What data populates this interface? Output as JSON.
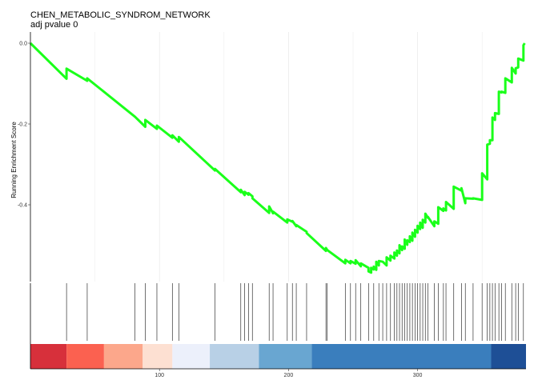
{
  "chart_data": {
    "type": "line",
    "title": "CHEN_METABOLIC_SYNDROM_NETWORK",
    "subtitle": "adj pvalue 0",
    "xlabel": "",
    "ylabel": "Running Enrichment Score",
    "xlim": [
      0,
      384
    ],
    "ylim": [
      -0.57,
      0.0
    ],
    "grid": true,
    "x_ticks": [
      100,
      200,
      300
    ],
    "y_ticks": [
      0.0,
      -0.2,
      -0.4
    ],
    "x_tick_labels": [
      "100",
      "200",
      "300"
    ],
    "y_tick_labels": [
      "0.0",
      "-0.2",
      "-0.4"
    ],
    "line_color": "#1aff1a",
    "series": [
      {
        "x": [
          0,
          28,
          28,
          44,
          44,
          81,
          81,
          89,
          89,
          98,
          98,
          110,
          110,
          115,
          115,
          143,
          143,
          163,
          163,
          166,
          166,
          169,
          169,
          172,
          172,
          185,
          185,
          188,
          188,
          199,
          199,
          203,
          203,
          206,
          206,
          214,
          214,
          229,
          229,
          230,
          230,
          244,
          244,
          248,
          248,
          252,
          252,
          256,
          256,
          262,
          262,
          264,
          264,
          266,
          266,
          268,
          268,
          270,
          270,
          273,
          273,
          276,
          276,
          279,
          279,
          282,
          282,
          284,
          284,
          286,
          286,
          288,
          288,
          290,
          290,
          292,
          292,
          294,
          294,
          296,
          296,
          298,
          298,
          300,
          300,
          302,
          302,
          304,
          304,
          306,
          306,
          308,
          308,
          313,
          313,
          316,
          316,
          320,
          320,
          322,
          322,
          328,
          328,
          334,
          334,
          337,
          337,
          343,
          343,
          350,
          350,
          354,
          354,
          356,
          356,
          358,
          358,
          360,
          360,
          363,
          363,
          365,
          365,
          368,
          368,
          373,
          373,
          376,
          376,
          378,
          378,
          382,
          382,
          383
        ],
        "y": [
          0.0,
          -0.088,
          -0.063,
          -0.093,
          -0.087,
          -0.182,
          -0.182,
          -0.207,
          -0.19,
          -0.212,
          -0.204,
          -0.234,
          -0.228,
          -0.244,
          -0.232,
          -0.315,
          -0.311,
          -0.369,
          -0.363,
          -0.376,
          -0.368,
          -0.375,
          -0.371,
          -0.379,
          -0.384,
          -0.42,
          -0.404,
          -0.421,
          -0.417,
          -0.444,
          -0.436,
          -0.442,
          -0.44,
          -0.453,
          -0.45,
          -0.467,
          -0.47,
          -0.514,
          -0.507,
          -0.512,
          -0.512,
          -0.545,
          -0.536,
          -0.545,
          -0.539,
          -0.546,
          -0.537,
          -0.552,
          -0.545,
          -0.556,
          -0.565,
          -0.568,
          -0.556,
          -0.56,
          -0.553,
          -0.561,
          -0.541,
          -0.55,
          -0.539,
          -0.541,
          -0.541,
          -0.55,
          -0.53,
          -0.538,
          -0.526,
          -0.533,
          -0.518,
          -0.526,
          -0.513,
          -0.52,
          -0.5,
          -0.512,
          -0.503,
          -0.509,
          -0.486,
          -0.499,
          -0.488,
          -0.492,
          -0.478,
          -0.489,
          -0.469,
          -0.479,
          -0.462,
          -0.469,
          -0.452,
          -0.46,
          -0.444,
          -0.457,
          -0.437,
          -0.444,
          -0.422,
          -0.432,
          -0.43,
          -0.453,
          -0.441,
          -0.447,
          -0.406,
          -0.415,
          -0.409,
          -0.414,
          -0.393,
          -0.41,
          -0.355,
          -0.365,
          -0.359,
          -0.396,
          -0.384,
          -0.385,
          -0.384,
          -0.388,
          -0.322,
          -0.337,
          -0.251,
          -0.249,
          -0.24,
          -0.24,
          -0.184,
          -0.19,
          -0.173,
          -0.175,
          -0.12,
          -0.122,
          -0.12,
          -0.123,
          -0.087,
          -0.097,
          -0.061,
          -0.075,
          -0.062,
          -0.06,
          -0.038,
          -0.043,
          -0.005,
          0.0
        ]
      }
    ],
    "hits": [
      28,
      44,
      81,
      89,
      98,
      110,
      115,
      143,
      163,
      166,
      169,
      172,
      185,
      188,
      199,
      203,
      206,
      214,
      229,
      230,
      244,
      248,
      252,
      256,
      262,
      266,
      270,
      273,
      276,
      279,
      282,
      284,
      286,
      288,
      290,
      292,
      294,
      296,
      298,
      300,
      302,
      304,
      306,
      308,
      313,
      316,
      320,
      322,
      328,
      334,
      337,
      343,
      350,
      354,
      356,
      358,
      360,
      363,
      365,
      368,
      373,
      376,
      378,
      382
    ],
    "color_bands": [
      {
        "x0": 0,
        "x1": 28,
        "color": "#d7303b"
      },
      {
        "x0": 28,
        "x1": 57,
        "color": "#fb6150"
      },
      {
        "x0": 57,
        "x1": 87,
        "color": "#fca78b"
      },
      {
        "x0": 87,
        "x1": 110,
        "color": "#fde0d2"
      },
      {
        "x0": 110,
        "x1": 139,
        "color": "#ecf0fb"
      },
      {
        "x0": 139,
        "x1": 177,
        "color": "#b8d0e6"
      },
      {
        "x0": 177,
        "x1": 218,
        "color": "#69a6d1"
      },
      {
        "x0": 218,
        "x1": 357,
        "color": "#3a7ebd"
      },
      {
        "x0": 357,
        "x1": 384,
        "color": "#1e4f96"
      }
    ]
  }
}
